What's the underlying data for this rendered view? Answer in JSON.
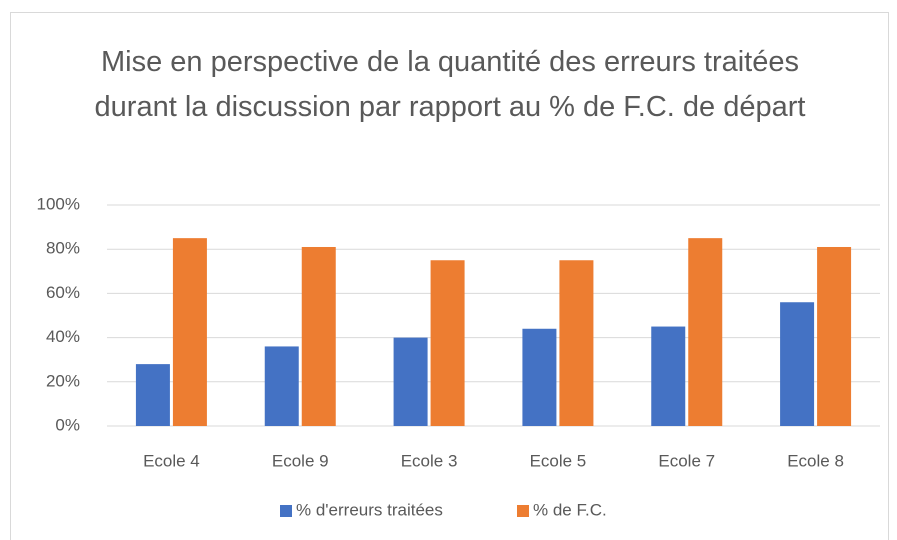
{
  "chart_data": {
    "type": "bar",
    "title": "Mise en perspective de la quantité des erreurs traitées durant la discussion par rapport au % de F.C. de départ",
    "categories": [
      "Ecole 4",
      "Ecole 9",
      "Ecole 3",
      "Ecole 5",
      "Ecole 7",
      "Ecole 8"
    ],
    "series": [
      {
        "name": "% d'erreurs traitées",
        "color": "#4472c4",
        "values": [
          28,
          36,
          40,
          44,
          45,
          56
        ]
      },
      {
        "name": "% de F.C.",
        "color": "#ed7d31",
        "values": [
          85,
          81,
          75,
          75,
          85,
          81
        ]
      }
    ],
    "ylim": [
      0,
      100
    ],
    "yticks": [
      {
        "value": 0,
        "label": "0%"
      },
      {
        "value": 20,
        "label": "20%"
      },
      {
        "value": 40,
        "label": "40%"
      },
      {
        "value": 60,
        "label": "60%"
      },
      {
        "value": 80,
        "label": "80%"
      },
      {
        "value": 100,
        "label": "100%"
      }
    ],
    "grid": true,
    "legend": "bottom"
  }
}
